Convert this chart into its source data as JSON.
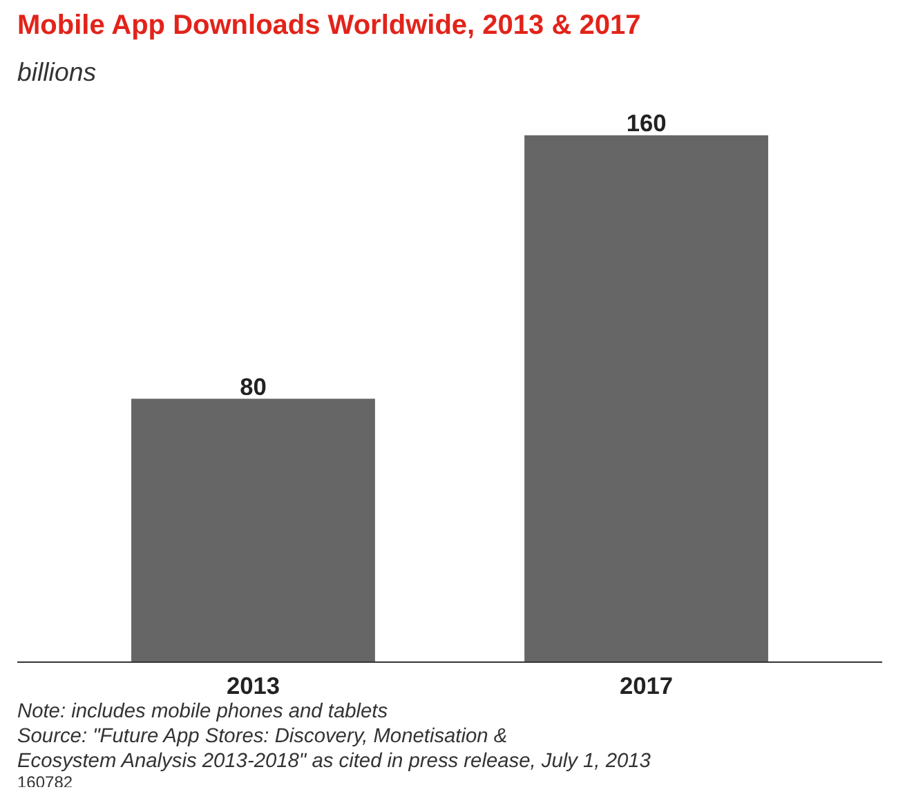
{
  "chart_data": {
    "type": "bar",
    "title": "Mobile App Downloads Worldwide, 2013 & 2017",
    "subtitle": "billions",
    "categories": [
      "2013",
      "2017"
    ],
    "values": [
      80,
      160
    ],
    "color": "#666666",
    "data_labels": true,
    "annotations": [
      "Note: includes mobile phones and tablets",
      "Source: \"Future App Stores: Discovery, Monetisation &",
      "Ecosystem Analysis 2013-2018\" as cited in press release, July 1, 2013",
      "160782"
    ]
  }
}
